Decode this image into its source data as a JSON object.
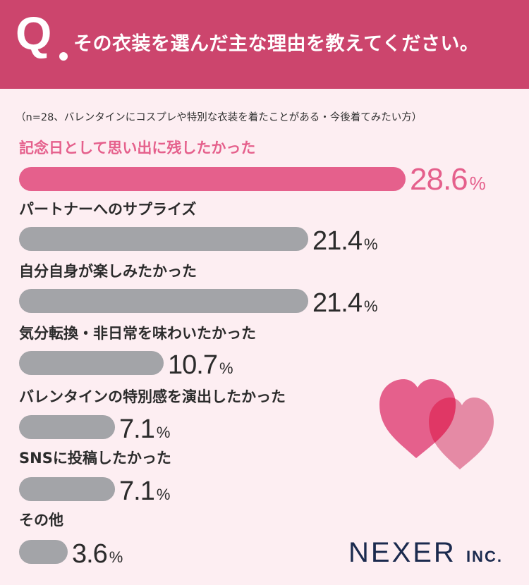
{
  "header": {
    "q_mark": "Q",
    "question": "その衣装を選んだ主な理由を教えてください。"
  },
  "subtitle": "（n=28、バレンタインにコスプレや特別な衣装を着たことがある・今後着てみたい方）",
  "chart_data": {
    "type": "bar",
    "orientation": "horizontal",
    "unit": "%",
    "categories": [
      "記念日として思い出に残したかった",
      "パートナーへのサプライズ",
      "自分自身が楽しみたかった",
      "気分転換・非日常を味わいたかった",
      "バレンタインの特別感を演出したかった",
      "SNSに投稿したかった",
      "その他"
    ],
    "values": [
      28.6,
      21.4,
      21.4,
      10.7,
      7.1,
      7.1,
      3.6
    ],
    "highlight_index": 0,
    "colors": {
      "highlight": "#e5608c",
      "default": "#a3a4a8",
      "highlight_text": "#e5608c",
      "default_text": "#2b2b2b"
    }
  },
  "logo": {
    "name": "NEXER",
    "suffix": "INC."
  },
  "decor": {
    "heart_left_color": "#e5608c",
    "heart_right_color": "#e58aa5",
    "overlap_color": "#e03765"
  }
}
